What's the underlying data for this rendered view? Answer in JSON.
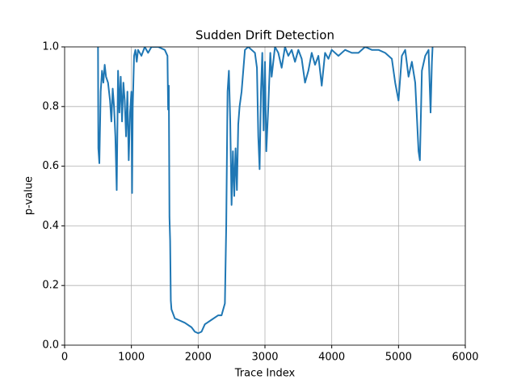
{
  "chart_data": {
    "type": "line",
    "title": "Sudden Drift Detection",
    "xlabel": "Trace Index",
    "ylabel": "p-value",
    "x": [
      500,
      505,
      520,
      540,
      560,
      580,
      600,
      620,
      650,
      680,
      700,
      720,
      740,
      760,
      780,
      800,
      820,
      840,
      860,
      880,
      900,
      920,
      940,
      960,
      980,
      1000,
      1010,
      1020,
      1040,
      1060,
      1080,
      1100,
      1150,
      1200,
      1250,
      1300,
      1400,
      1500,
      1540,
      1550,
      1560,
      1570,
      1580,
      1590,
      1600,
      1650,
      1700,
      1800,
      1900,
      1950,
      2000,
      2050,
      2100,
      2200,
      2300,
      2350,
      2400,
      2420,
      2440,
      2460,
      2480,
      2500,
      2520,
      2540,
      2560,
      2580,
      2600,
      2620,
      2650,
      2700,
      2750,
      2800,
      2850,
      2880,
      2900,
      2920,
      2940,
      2960,
      2980,
      3000,
      3020,
      3050,
      3080,
      3100,
      3150,
      3200,
      3250,
      3300,
      3350,
      3400,
      3450,
      3500,
      3550,
      3600,
      3650,
      3700,
      3750,
      3800,
      3850,
      3900,
      3950,
      4000,
      4100,
      4200,
      4300,
      4400,
      4500,
      4600,
      4700,
      4800,
      4900,
      4950,
      5000,
      5050,
      5100,
      5150,
      5200,
      5250,
      5300,
      5320,
      5350,
      5400,
      5450,
      5480,
      5500,
      5510
    ],
    "series": [
      {
        "name": "p-value",
        "color": "#1f77b4",
        "values": [
          1.0,
          0.66,
          0.61,
          0.85,
          0.92,
          0.88,
          0.94,
          0.9,
          0.88,
          0.82,
          0.75,
          0.86,
          0.8,
          0.7,
          0.52,
          0.92,
          0.78,
          0.9,
          0.75,
          0.88,
          0.82,
          0.7,
          0.85,
          0.62,
          0.78,
          0.85,
          0.51,
          0.8,
          0.97,
          0.99,
          0.95,
          0.99,
          0.97,
          1.0,
          0.98,
          1.0,
          1.0,
          0.99,
          0.97,
          0.79,
          0.87,
          0.43,
          0.35,
          0.15,
          0.12,
          0.09,
          0.085,
          0.075,
          0.06,
          0.045,
          0.04,
          0.045,
          0.07,
          0.085,
          0.1,
          0.1,
          0.14,
          0.4,
          0.85,
          0.92,
          0.75,
          0.47,
          0.65,
          0.5,
          0.66,
          0.52,
          0.74,
          0.8,
          0.85,
          0.99,
          1.0,
          0.99,
          0.98,
          0.93,
          0.7,
          0.59,
          0.85,
          0.98,
          0.72,
          0.95,
          0.65,
          0.8,
          0.98,
          0.9,
          1.0,
          0.98,
          0.93,
          1.0,
          0.97,
          0.99,
          0.95,
          0.99,
          0.96,
          0.88,
          0.92,
          0.98,
          0.94,
          0.97,
          0.87,
          0.98,
          0.96,
          0.99,
          0.97,
          0.99,
          0.98,
          0.98,
          1.0,
          0.99,
          0.99,
          0.98,
          0.96,
          0.88,
          0.82,
          0.97,
          0.99,
          0.9,
          0.95,
          0.88,
          0.65,
          0.62,
          0.92,
          0.97,
          0.99,
          0.78,
          0.95,
          1.0
        ]
      }
    ],
    "xlim": [
      0,
      6000
    ],
    "xticks": [
      0,
      1000,
      2000,
      3000,
      4000,
      5000,
      6000
    ],
    "ylim": [
      0,
      1
    ],
    "yticks": [
      {
        "value": 0,
        "label": "0.0"
      },
      0.2,
      0.4,
      0.6,
      0.8,
      {
        "value": 1,
        "label": "1.0"
      }
    ],
    "grid": true
  }
}
